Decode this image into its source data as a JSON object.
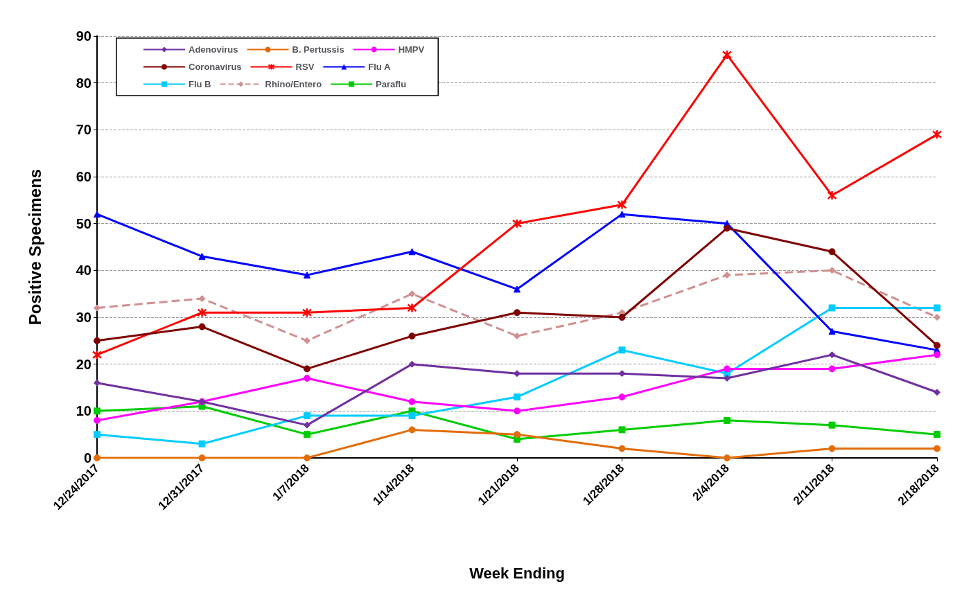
{
  "chart_data": {
    "type": "line",
    "xlabel": "Week Ending",
    "ylabel": "Positive Specimens",
    "categories": [
      "12/24/2017",
      "12/31/2017",
      "1/7/2018",
      "1/14/2018",
      "1/21/2018",
      "1/28/2018",
      "2/4/2018",
      "2/11/2018",
      "2/18/2018"
    ],
    "ylim": [
      0,
      90
    ],
    "yticks": [
      0,
      10,
      20,
      30,
      40,
      50,
      60,
      70,
      80,
      90
    ],
    "grid": "y",
    "legend": "top left",
    "series": [
      {
        "name": "Adenovirus",
        "color": "#7030a0",
        "marker": "diamond",
        "values": [
          16,
          12,
          7,
          20,
          18,
          18,
          17,
          22,
          14
        ]
      },
      {
        "name": "B. Pertussis",
        "color": "#e36c09",
        "marker": "circle",
        "values": [
          0,
          0,
          0,
          6,
          5,
          2,
          0,
          2,
          2
        ]
      },
      {
        "name": "HMPV",
        "color": "#ff00ff",
        "marker": "circle",
        "values": [
          8,
          12,
          17,
          12,
          10,
          13,
          19,
          19,
          22
        ]
      },
      {
        "name": "Coronavirus",
        "color": "#7f0000",
        "marker": "circle",
        "values": [
          25,
          28,
          19,
          26,
          31,
          30,
          49,
          44,
          24
        ]
      },
      {
        "name": "RSV",
        "color": "#ff0000",
        "marker": "cross",
        "values": [
          22,
          31,
          31,
          32,
          50,
          54,
          86,
          56,
          69
        ]
      },
      {
        "name": "Flu A",
        "color": "#0000ff",
        "marker": "triangle",
        "values": [
          52,
          43,
          39,
          44,
          36,
          52,
          50,
          27,
          23
        ]
      },
      {
        "name": "Flu B",
        "color": "#00ccff",
        "marker": "square",
        "values": [
          5,
          3,
          9,
          9,
          13,
          23,
          18,
          32,
          32
        ]
      },
      {
        "name": "Rhino/Entero",
        "color": "#d09090",
        "marker": "diamond",
        "line_style": "dashed",
        "values": [
          32,
          34,
          25,
          35,
          26,
          31,
          39,
          40,
          30
        ]
      },
      {
        "name": "Paraflu",
        "color": "#00cc00",
        "marker": "square",
        "values": [
          10,
          11,
          5,
          10,
          4,
          6,
          8,
          7,
          5
        ]
      }
    ]
  }
}
